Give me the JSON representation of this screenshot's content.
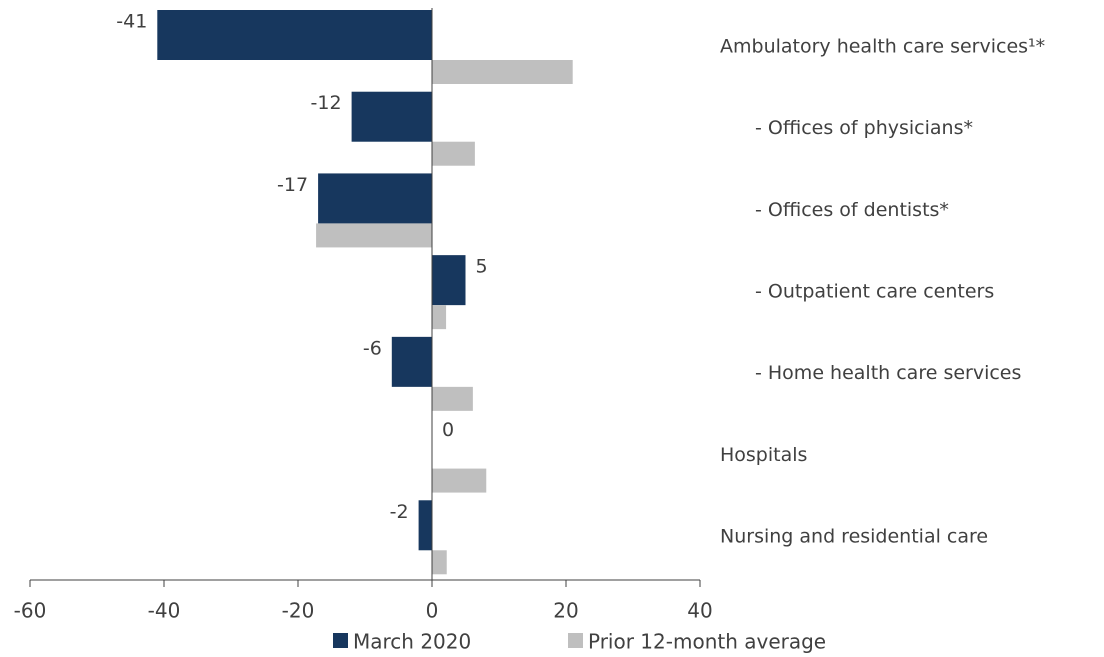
{
  "chart_data": {
    "type": "barh",
    "categories": [
      "Ambulatory health care services¹*",
      "- Offices of physicians*",
      "- Offices of dentists*",
      "- Outpatient care centers",
      "- Home health care services",
      "Hospitals",
      "Nursing and residential care"
    ],
    "series": [
      {
        "name": "March 2020",
        "color": "#17375e",
        "values": [
          -41,
          -12,
          -17,
          5,
          -6,
          0,
          -2
        ]
      },
      {
        "name": "Prior 12-month average",
        "color": "#bfbfbf",
        "values": [
          21,
          6.4,
          -17.3,
          2.1,
          6.1,
          8.1,
          2.2
        ]
      }
    ],
    "xlim": [
      -60,
      40
    ],
    "xticks": [
      -60,
      -40,
      -20,
      0,
      20,
      40
    ],
    "legend": "bottom"
  }
}
